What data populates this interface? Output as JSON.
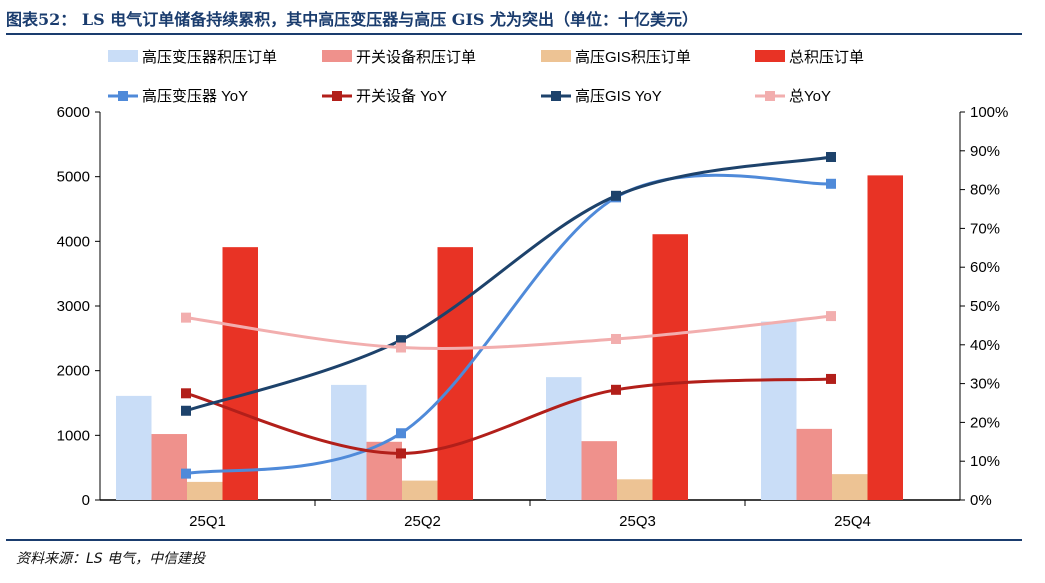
{
  "title": "图表52：  LS 电气订单储备持续累积，其中高压变压器与高压 GIS 尤为突出（单位：十亿美元）",
  "source": "资料来源：LS 电气，中信建投",
  "chart_data": {
    "type": "bar+line",
    "categories": [
      "25Q1",
      "25Q2",
      "25Q3",
      "25Q4"
    ],
    "y_left": {
      "range": [
        0,
        6000
      ],
      "ticks": [
        "0",
        "1000",
        "2000",
        "3000",
        "4000",
        "5000",
        "6000"
      ]
    },
    "y_right": {
      "range": [
        0,
        100
      ],
      "ticks": [
        "0%",
        "10%",
        "20%",
        "30%",
        "40%",
        "50%",
        "60%",
        "70%",
        "80%",
        "90%",
        "100%"
      ]
    },
    "grid": false,
    "legend_position": "top",
    "bar_series": [
      {
        "name": "高压变压器积压订单",
        "color": "#c9ddf7",
        "values": [
          1610,
          1780,
          1900,
          2760
        ]
      },
      {
        "name": "开关设备积压订单",
        "color": "#ef918c",
        "values": [
          1020,
          900,
          910,
          1100
        ]
      },
      {
        "name": "高压GIS积压订单",
        "color": "#edc394",
        "values": [
          280,
          300,
          320,
          400
        ]
      },
      {
        "name": "总积压订单",
        "color": "#e83325",
        "values": [
          3910,
          3910,
          4110,
          5020
        ]
      }
    ],
    "line_series": [
      {
        "name": "高压变压器 YoY",
        "color": "#4f8ad9",
        "values": [
          6.8,
          17.2,
          78.0,
          81.5
        ]
      },
      {
        "name": "开关设备 YoY",
        "color": "#b21f1a",
        "values": [
          27.5,
          12.0,
          28.4,
          31.2
        ]
      },
      {
        "name": "高压GIS YoY",
        "color": "#1d426b",
        "values": [
          23.0,
          41.2,
          78.4,
          88.4
        ]
      },
      {
        "name": "总YoY",
        "color": "#f2aeae",
        "values": [
          47.0,
          39.3,
          41.5,
          47.4
        ]
      }
    ]
  }
}
